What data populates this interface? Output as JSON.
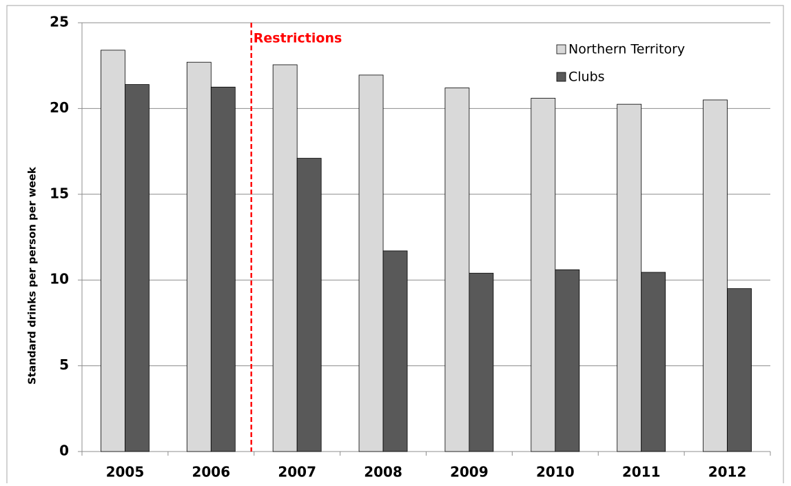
{
  "chart_data": {
    "type": "bar",
    "ylabel": "Standard drinks per person per week",
    "annotation": "Restrictions",
    "categories": [
      "2005",
      "2006",
      "2007",
      "2008",
      "2009",
      "2010",
      "2011",
      "2012"
    ],
    "series": [
      {
        "name": "Northern Territory",
        "color": "#d9d9d9",
        "values": [
          23.4,
          22.7,
          22.55,
          21.95,
          21.2,
          20.6,
          20.25,
          20.5
        ]
      },
      {
        "name": "Clubs",
        "color": "#595959",
        "values": [
          21.4,
          21.25,
          17.1,
          11.7,
          10.4,
          10.6,
          10.45,
          9.5
        ]
      }
    ],
    "ylim": [
      0,
      25
    ],
    "yticks": [
      0,
      5,
      10,
      15,
      20,
      25
    ],
    "grid": true
  }
}
